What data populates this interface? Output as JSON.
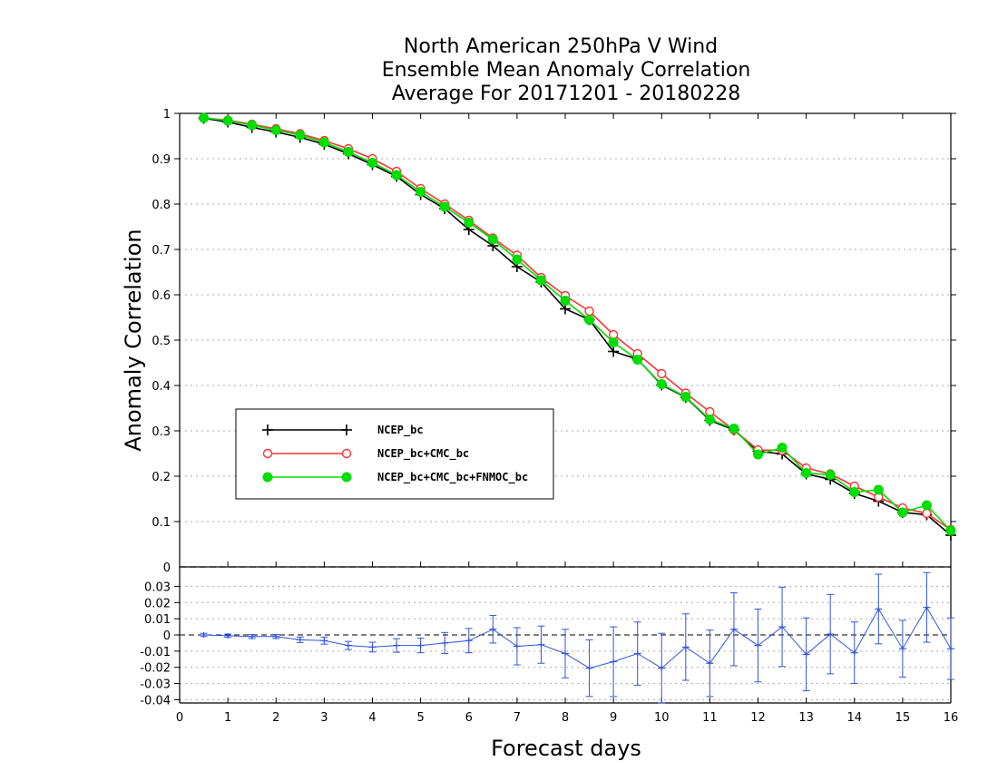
{
  "chart_data": {
    "type": "line",
    "title_lines": [
      "North American 250hPa V Wind",
      "Ensemble Mean Anomaly Correlation",
      "Average For 20171201 - 20180228"
    ],
    "xlabel": "Forecast days",
    "ylabel": "Anomaly Correlation",
    "xlim": [
      0,
      16
    ],
    "ylim": [
      0,
      1
    ],
    "x_ticks": [
      0,
      1,
      2,
      3,
      4,
      5,
      6,
      7,
      8,
      9,
      10,
      11,
      12,
      13,
      14,
      15,
      16
    ],
    "y_ticks": [
      0.1,
      0.2,
      0.3,
      0.4,
      0.5,
      0.6,
      0.7,
      0.8,
      0.9,
      1
    ],
    "y_tick_labels": [
      "0.1",
      "0.2",
      "0.3",
      "0.4",
      "0.5",
      "0.6",
      "0.7",
      "0.8",
      "0.9",
      "1"
    ],
    "grid": true,
    "legend_position": "lower-left",
    "x": [
      0.5,
      1.0,
      1.5,
      2.0,
      2.5,
      3.0,
      3.5,
      4.0,
      4.5,
      5.0,
      5.5,
      6.0,
      6.5,
      7.0,
      7.5,
      8.0,
      8.5,
      9.0,
      9.5,
      10.0,
      10.5,
      11.0,
      11.5,
      12.0,
      12.5,
      13.0,
      13.5,
      14.0,
      14.5,
      15.0,
      15.5,
      16.0
    ],
    "series": [
      {
        "name": "NCEP_bc",
        "color": "#000000",
        "marker": "plus",
        "values": [
          0.989,
          0.981,
          0.969,
          0.959,
          0.947,
          0.932,
          0.911,
          0.887,
          0.861,
          0.821,
          0.79,
          0.744,
          0.708,
          0.662,
          0.628,
          0.569,
          0.545,
          0.475,
          0.458,
          0.401,
          0.374,
          0.323,
          0.302,
          0.255,
          0.249,
          0.205,
          0.193,
          0.162,
          0.145,
          0.12,
          0.115,
          0.07
        ]
      },
      {
        "name": "NCEP_bc+CMC_bc",
        "color": "#ff3333",
        "marker": "open-circle",
        "values": [
          0.99,
          0.985,
          0.976,
          0.966,
          0.955,
          0.94,
          0.922,
          0.9,
          0.872,
          0.834,
          0.8,
          0.764,
          0.725,
          0.687,
          0.638,
          0.598,
          0.564,
          0.512,
          0.47,
          0.426,
          0.383,
          0.342,
          0.302,
          0.258,
          0.257,
          0.218,
          0.205,
          0.178,
          0.154,
          0.13,
          0.118,
          0.082
        ]
      },
      {
        "name": "NCEP_bc+CMC_bc+FNMOC_bc",
        "color": "#00dd00",
        "marker": "filled-circle",
        "values": [
          0.99,
          0.984,
          0.974,
          0.963,
          0.952,
          0.936,
          0.915,
          0.891,
          0.864,
          0.827,
          0.794,
          0.759,
          0.722,
          0.678,
          0.632,
          0.587,
          0.545,
          0.495,
          0.457,
          0.403,
          0.375,
          0.325,
          0.305,
          0.248,
          0.263,
          0.207,
          0.203,
          0.165,
          0.17,
          0.12,
          0.136,
          0.08
        ]
      }
    ],
    "difference_panel": {
      "ylim": [
        -0.042,
        0.042
      ],
      "y_ticks": [
        -0.04,
        -0.03,
        -0.02,
        -0.01,
        0,
        0.01,
        0.02,
        0.03
      ],
      "y_tick_labels": [
        "-0.04",
        "-0.03",
        "-0.02",
        "-0.01",
        "0",
        "0.01",
        "0.02",
        "0.03"
      ],
      "top_label": "0",
      "color": "#3355dd",
      "x": [
        0.5,
        1.0,
        1.5,
        2.0,
        2.5,
        3.0,
        3.5,
        4.0,
        4.5,
        5.0,
        5.5,
        6.0,
        6.5,
        7.0,
        7.5,
        8.0,
        8.5,
        9.0,
        9.5,
        10.0,
        10.5,
        11.0,
        11.5,
        12.0,
        12.5,
        13.0,
        13.5,
        14.0,
        14.5,
        15.0,
        15.5,
        16.0
      ],
      "values": [
        0.0,
        -0.0005,
        -0.001,
        -0.001,
        -0.003,
        -0.0035,
        -0.0065,
        -0.0075,
        -0.0065,
        -0.0065,
        -0.005,
        -0.0035,
        0.0035,
        -0.007,
        -0.006,
        -0.0115,
        -0.0205,
        -0.0165,
        -0.0115,
        -0.0205,
        -0.0075,
        -0.0175,
        0.0035,
        -0.0065,
        0.005,
        -0.012,
        0.0005,
        -0.011,
        0.016,
        -0.0085,
        0.017,
        -0.0085
      ],
      "errors": [
        0.001,
        0.001,
        0.0012,
        0.0012,
        0.0017,
        0.0022,
        0.0025,
        0.003,
        0.0042,
        0.0045,
        0.0065,
        0.0075,
        0.0085,
        0.0115,
        0.0115,
        0.015,
        0.0175,
        0.0215,
        0.0195,
        0.0215,
        0.0205,
        0.0205,
        0.0225,
        0.0225,
        0.0245,
        0.0225,
        0.0245,
        0.019,
        0.0215,
        0.0175,
        0.0215,
        0.019
      ]
    }
  }
}
